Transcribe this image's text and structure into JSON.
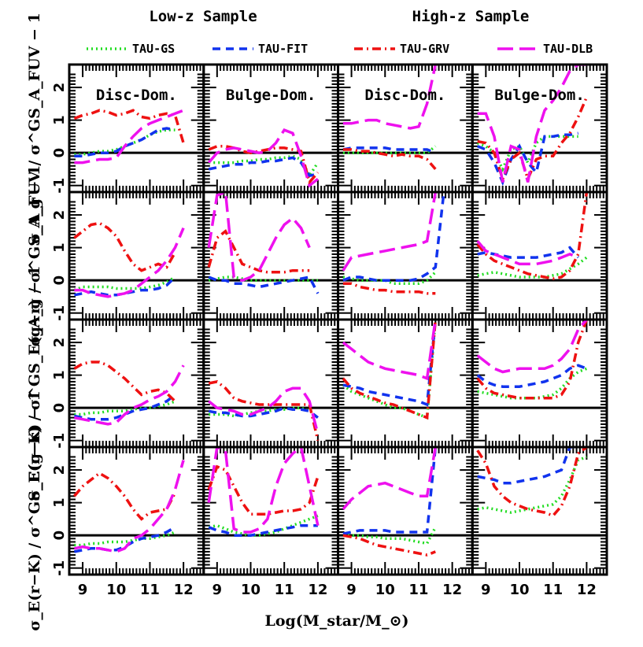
{
  "headers": {
    "left": "Low-z Sample",
    "right": "High-z Sample"
  },
  "colors": {
    "TAU-GS": "#22dd22",
    "TAU-FIT": "#1133ee",
    "TAU-GRV": "#ee1111",
    "TAU-DLB": "#ee11ee"
  },
  "chart_data": {
    "type": "line",
    "xlabel": "Log(M_star/M_⊙)",
    "xlim": [
      8.6,
      12.6
    ],
    "ylim": [
      -1.2,
      2.7
    ],
    "x_ticks": [
      "9",
      "10",
      "11",
      "12"
    ],
    "y_ticks": [
      "-1",
      "0",
      "1",
      "2"
    ],
    "reference_line": 0,
    "legend": [
      "TAU-GS",
      "TAU-FIT",
      "TAU-GRV",
      "TAU-DLB"
    ],
    "column_titles": [
      "Disc-Dom.",
      "Bulge-Dom.",
      "Disc-Dom.",
      "Bulge-Dom."
    ],
    "row_ylabels": [
      "σ_A_FUV / σ^GS_A_FUV − 1",
      "σ_A_g / σ^GS_A_g − 1",
      "σ_E(g−r) / σ^GS_E(g−r) − 1",
      "σ_E(r−K) / σ^GS_E(r−K) − 1"
    ],
    "x": [
      8.75,
      9.0,
      9.25,
      9.5,
      9.75,
      10.0,
      10.25,
      10.5,
      10.75,
      11.0,
      11.25,
      11.5,
      11.75,
      12.0
    ],
    "panels": [
      [
        {
          "TAU-GS": [
            -0.05,
            -0.05,
            0.0,
            0.05,
            0.05,
            0.1,
            0.2,
            0.3,
            0.4,
            0.55,
            0.65,
            0.7,
            0.7,
            null
          ],
          "TAU-FIT": [
            -0.1,
            -0.1,
            -0.05,
            0.0,
            0.0,
            0.05,
            0.2,
            0.3,
            0.4,
            0.55,
            0.7,
            0.75,
            0.7,
            null
          ],
          "TAU-GRV": [
            1.05,
            1.15,
            1.2,
            1.3,
            1.25,
            1.15,
            1.2,
            1.3,
            1.1,
            1.05,
            1.15,
            1.2,
            1.15,
            0.3
          ],
          "TAU-DLB": [
            -0.3,
            -0.3,
            -0.25,
            -0.2,
            -0.2,
            -0.15,
            0.2,
            0.5,
            0.75,
            0.9,
            1.0,
            1.1,
            1.2,
            1.3
          ]
        },
        {
          "TAU-GS": [
            -0.3,
            -0.3,
            -0.3,
            -0.3,
            -0.25,
            -0.25,
            -0.2,
            -0.2,
            -0.15,
            -0.15,
            -0.1,
            -0.2,
            -0.7,
            -0.3
          ],
          "TAU-FIT": [
            -0.5,
            -0.45,
            -0.4,
            -0.35,
            -0.35,
            -0.3,
            -0.3,
            -0.25,
            -0.25,
            -0.2,
            -0.15,
            -0.3,
            -0.7,
            -0.65
          ],
          "TAU-GRV": [
            0.1,
            0.2,
            0.2,
            0.15,
            0.05,
            0.0,
            0.05,
            0.1,
            0.15,
            0.15,
            0.1,
            0.05,
            -0.9,
            -0.6
          ],
          "TAU-DLB": [
            -0.3,
            0.0,
            0.1,
            0.15,
            0.1,
            0.05,
            0.0,
            0.05,
            0.3,
            0.7,
            0.6,
            -0.1,
            -1.0,
            -0.8
          ]
        },
        {
          "TAU-GS": [
            0.0,
            0.0,
            0.0,
            0.0,
            0.0,
            0.0,
            0.0,
            0.0,
            0.0,
            0.0,
            0.0,
            0.2,
            null,
            null
          ],
          "TAU-FIT": [
            0.1,
            0.15,
            0.15,
            0.15,
            0.15,
            0.15,
            0.1,
            0.1,
            0.1,
            0.1,
            0.1,
            0.0,
            null,
            null
          ],
          "TAU-GRV": [
            0.1,
            0.1,
            0.05,
            0.05,
            0.0,
            -0.05,
            -0.1,
            -0.05,
            -0.1,
            -0.1,
            -0.2,
            -0.5,
            null,
            null
          ],
          "TAU-DLB": [
            0.9,
            0.9,
            0.95,
            1.0,
            1.0,
            0.9,
            0.85,
            0.8,
            0.75,
            0.8,
            1.5,
            2.7,
            null,
            null
          ]
        },
        {
          "TAU-GS": [
            0.3,
            0.2,
            0.0,
            -0.5,
            0.1,
            0.2,
            -0.3,
            0.3,
            0.5,
            0.5,
            0.5,
            0.5,
            0.5,
            null
          ],
          "TAU-FIT": [
            0.2,
            0.1,
            -0.3,
            -0.9,
            -0.2,
            0.2,
            -0.3,
            -0.6,
            0.5,
            0.5,
            0.55,
            0.55,
            0.6,
            null
          ],
          "TAU-GRV": [
            0.35,
            0.3,
            0.0,
            -0.8,
            -0.2,
            0.0,
            -0.8,
            -0.2,
            -0.1,
            -0.1,
            0.3,
            0.6,
            1.1,
            1.7
          ],
          "TAU-DLB": [
            1.2,
            1.2,
            0.5,
            -0.9,
            0.2,
            0.1,
            -0.9,
            0.5,
            1.3,
            1.6,
            2.0,
            2.5,
            2.7,
            2.7
          ]
        }
      ],
      [
        {
          "TAU-GS": [
            -0.3,
            -0.2,
            -0.2,
            -0.2,
            -0.2,
            -0.25,
            -0.25,
            -0.25,
            -0.25,
            -0.2,
            -0.15,
            -0.05,
            0.1,
            null
          ],
          "TAU-FIT": [
            -0.45,
            -0.4,
            -0.35,
            -0.4,
            -0.45,
            -0.45,
            -0.4,
            -0.35,
            -0.3,
            -0.3,
            -0.25,
            -0.15,
            0.1,
            null
          ],
          "TAU-GRV": [
            1.3,
            1.5,
            1.7,
            1.75,
            1.6,
            1.35,
            0.9,
            0.5,
            0.3,
            0.4,
            0.5,
            0.4,
            0.85,
            null
          ],
          "TAU-DLB": [
            -0.3,
            -0.3,
            -0.4,
            -0.45,
            -0.5,
            -0.45,
            -0.4,
            -0.3,
            -0.1,
            0.1,
            0.3,
            0.6,
            1.0,
            1.6
          ]
        },
        {
          "TAU-GS": [
            0.0,
            0.05,
            0.1,
            0.1,
            0.05,
            0.0,
            0.0,
            0.0,
            0.0,
            0.0,
            0.0,
            0.0,
            0.0,
            0.0
          ],
          "TAU-FIT": [
            0.1,
            0.0,
            0.0,
            -0.1,
            -0.1,
            -0.15,
            -0.2,
            -0.15,
            -0.1,
            -0.05,
            0.0,
            0.05,
            0.1,
            -0.4
          ],
          "TAU-GRV": [
            0.4,
            1.3,
            1.5,
            1.0,
            0.5,
            0.4,
            0.3,
            0.25,
            0.25,
            0.25,
            0.3,
            0.3,
            0.3,
            null
          ],
          "TAU-DLB": [
            1.0,
            2.6,
            2.7,
            0.1,
            0.0,
            0.1,
            0.3,
            0.8,
            1.3,
            1.7,
            1.9,
            1.6,
            1.0,
            null
          ]
        },
        {
          "TAU-GS": [
            0.1,
            0.05,
            0.0,
            0.0,
            0.0,
            0.0,
            -0.1,
            -0.1,
            -0.1,
            -0.1,
            0.0,
            0.25,
            null,
            null
          ],
          "TAU-FIT": [
            0.0,
            0.1,
            0.1,
            0.05,
            0.0,
            0.0,
            0.0,
            0.0,
            0.0,
            0.05,
            0.2,
            0.4,
            2.7,
            null
          ],
          "TAU-GRV": [
            -0.1,
            -0.1,
            -0.2,
            -0.25,
            -0.3,
            -0.3,
            -0.35,
            -0.35,
            -0.35,
            -0.35,
            -0.4,
            -0.4,
            null,
            null
          ],
          "TAU-DLB": [
            0.3,
            0.7,
            0.75,
            0.8,
            0.85,
            0.9,
            0.95,
            1.0,
            1.05,
            1.1,
            1.2,
            2.7,
            null,
            null
          ]
        },
        {
          "TAU-GS": [
            0.15,
            0.2,
            0.25,
            0.2,
            0.15,
            0.1,
            0.1,
            0.1,
            0.1,
            0.15,
            0.2,
            0.35,
            0.5,
            0.7
          ],
          "TAU-FIT": [
            0.8,
            0.85,
            0.8,
            0.75,
            0.7,
            0.7,
            0.7,
            0.7,
            0.75,
            0.8,
            0.85,
            1.0,
            0.7,
            null
          ],
          "TAU-GRV": [
            1.1,
            0.8,
            0.6,
            0.5,
            0.4,
            0.3,
            0.2,
            0.15,
            0.1,
            0.05,
            0.1,
            0.3,
            0.8,
            2.7
          ],
          "TAU-DLB": [
            1.2,
            0.9,
            0.8,
            0.7,
            0.6,
            0.5,
            0.5,
            0.5,
            0.55,
            0.6,
            0.7,
            0.8,
            0.7,
            null
          ]
        }
      ],
      [
        {
          "TAU-GS": [
            -0.2,
            -0.2,
            -0.15,
            -0.15,
            -0.1,
            -0.1,
            -0.1,
            -0.05,
            0.0,
            0.0,
            0.05,
            0.1,
            0.2,
            null
          ],
          "TAU-FIT": [
            -0.25,
            -0.3,
            -0.35,
            -0.35,
            -0.35,
            -0.3,
            -0.2,
            -0.1,
            -0.05,
            0.0,
            0.1,
            0.2,
            0.4,
            null
          ],
          "TAU-GRV": [
            1.2,
            1.35,
            1.4,
            1.4,
            1.3,
            1.1,
            0.9,
            0.65,
            0.4,
            0.5,
            0.55,
            0.45,
            0.2,
            null
          ],
          "TAU-DLB": [
            -0.3,
            -0.35,
            -0.4,
            -0.45,
            -0.5,
            -0.45,
            -0.2,
            0.0,
            0.1,
            0.25,
            0.35,
            0.5,
            0.8,
            1.3
          ]
        },
        {
          "TAU-GS": [
            -0.2,
            -0.2,
            -0.2,
            -0.25,
            -0.2,
            -0.15,
            -0.1,
            -0.1,
            -0.05,
            -0.05,
            0.0,
            0.0,
            -0.1,
            null
          ],
          "TAU-FIT": [
            -0.1,
            -0.15,
            -0.15,
            -0.2,
            -0.25,
            -0.25,
            -0.2,
            -0.15,
            -0.1,
            0.0,
            -0.05,
            -0.05,
            -0.1,
            -0.3
          ],
          "TAU-GRV": [
            0.75,
            0.8,
            0.6,
            0.3,
            0.2,
            0.15,
            0.1,
            0.1,
            0.1,
            0.1,
            0.1,
            0.1,
            0.1,
            -1.0
          ],
          "TAU-DLB": [
            0.2,
            0.0,
            -0.05,
            -0.1,
            -0.2,
            -0.2,
            -0.1,
            0.0,
            0.2,
            0.5,
            0.6,
            0.6,
            0.2,
            -0.8
          ]
        },
        {
          "TAU-GS": [
            0.7,
            0.5,
            0.4,
            0.3,
            0.2,
            0.1,
            0.0,
            0.0,
            -0.1,
            -0.2,
            -0.3,
            2.7,
            null,
            null
          ],
          "TAU-FIT": [
            0.7,
            0.65,
            0.6,
            0.5,
            0.45,
            0.4,
            0.35,
            0.3,
            0.25,
            0.2,
            0.1,
            2.7,
            null,
            null
          ],
          "TAU-GRV": [
            0.9,
            0.6,
            0.45,
            0.35,
            0.25,
            0.15,
            0.1,
            0.0,
            -0.1,
            -0.2,
            -0.3,
            2.7,
            null,
            null
          ],
          "TAU-DLB": [
            2.0,
            1.8,
            1.6,
            1.4,
            1.3,
            1.2,
            1.15,
            1.1,
            1.05,
            1.0,
            0.9,
            2.7,
            null,
            null
          ]
        },
        {
          "TAU-GS": [
            0.5,
            0.45,
            0.4,
            0.35,
            0.3,
            0.3,
            0.3,
            0.3,
            0.35,
            0.4,
            0.6,
            0.9,
            1.1,
            1.2
          ],
          "TAU-FIT": [
            1.0,
            0.8,
            0.7,
            0.65,
            0.65,
            0.65,
            0.7,
            0.75,
            0.8,
            0.9,
            1.0,
            1.2,
            1.3,
            1.2
          ],
          "TAU-GRV": [
            0.9,
            0.6,
            0.45,
            0.4,
            0.35,
            0.3,
            0.3,
            0.3,
            0.3,
            0.3,
            0.4,
            0.8,
            2.0,
            2.7
          ],
          "TAU-DLB": [
            1.6,
            1.4,
            1.2,
            1.1,
            1.15,
            1.2,
            1.2,
            1.2,
            1.2,
            1.3,
            1.5,
            1.8,
            2.4,
            2.7
          ]
        }
      ],
      [
        {
          "TAU-GS": [
            -0.3,
            -0.3,
            -0.25,
            -0.25,
            -0.2,
            -0.2,
            -0.2,
            -0.15,
            -0.1,
            -0.1,
            -0.05,
            0.0,
            0.1,
            null
          ],
          "TAU-FIT": [
            -0.5,
            -0.45,
            -0.4,
            -0.4,
            -0.45,
            -0.45,
            -0.35,
            -0.2,
            -0.1,
            -0.05,
            0.0,
            0.1,
            0.25,
            null
          ],
          "TAU-GRV": [
            1.2,
            1.5,
            1.7,
            1.9,
            1.75,
            1.5,
            1.2,
            0.8,
            0.5,
            0.7,
            0.75,
            0.8,
            1.3,
            null
          ],
          "TAU-DLB": [
            -0.4,
            -0.35,
            -0.4,
            -0.4,
            -0.45,
            -0.5,
            -0.4,
            -0.1,
            0.0,
            0.2,
            0.5,
            0.8,
            1.4,
            2.3
          ]
        },
        {
          "TAU-GS": [
            0.25,
            0.3,
            0.2,
            0.1,
            0.05,
            0.0,
            0.0,
            0.05,
            0.1,
            0.2,
            0.3,
            0.4,
            0.5,
            0.6
          ],
          "TAU-FIT": [
            0.25,
            0.15,
            0.1,
            0.0,
            0.0,
            0.0,
            0.05,
            0.1,
            0.15,
            0.2,
            0.25,
            0.3,
            0.3,
            0.3
          ],
          "TAU-GRV": [
            1.4,
            2.1,
            2.0,
            1.5,
            1.0,
            0.65,
            0.65,
            0.65,
            0.7,
            0.75,
            0.75,
            0.8,
            1.0,
            1.8
          ],
          "TAU-DLB": [
            1.0,
            2.7,
            2.6,
            0.2,
            0.1,
            0.1,
            0.2,
            0.5,
            1.5,
            2.2,
            2.5,
            2.7,
            1.5,
            0.3
          ]
        },
        {
          "TAU-GS": [
            0.0,
            0.0,
            0.0,
            -0.05,
            -0.05,
            -0.1,
            -0.1,
            -0.1,
            -0.15,
            -0.2,
            -0.25,
            0.25,
            null,
            null
          ],
          "TAU-FIT": [
            0.05,
            0.1,
            0.15,
            0.15,
            0.15,
            0.15,
            0.1,
            0.1,
            0.1,
            0.1,
            0.1,
            2.7,
            null,
            null
          ],
          "TAU-GRV": [
            0.0,
            -0.05,
            -0.1,
            -0.2,
            -0.3,
            -0.35,
            -0.4,
            -0.45,
            -0.5,
            -0.55,
            -0.6,
            -0.5,
            null,
            null
          ],
          "TAU-DLB": [
            0.8,
            1.1,
            1.3,
            1.5,
            1.55,
            1.6,
            1.5,
            1.4,
            1.3,
            1.2,
            1.2,
            2.7,
            null,
            null
          ]
        },
        {
          "TAU-GS": [
            0.8,
            0.85,
            0.8,
            0.75,
            0.7,
            0.75,
            0.8,
            0.85,
            0.9,
            0.95,
            1.2,
            1.7,
            2.3,
            2.4
          ],
          "TAU-FIT": [
            1.8,
            1.75,
            1.7,
            1.6,
            1.6,
            1.65,
            1.7,
            1.75,
            1.8,
            1.9,
            2.0,
            2.7,
            2.7,
            null
          ],
          "TAU-GRV": [
            2.6,
            2.2,
            1.5,
            1.2,
            1.0,
            0.9,
            0.8,
            0.75,
            0.7,
            0.6,
            0.9,
            1.5,
            2.5,
            2.7
          ],
          "TAU-DLB": [
            null,
            null,
            null,
            null,
            null,
            null,
            null,
            null,
            null,
            null,
            null,
            null,
            null,
            null
          ]
        }
      ]
    ]
  }
}
